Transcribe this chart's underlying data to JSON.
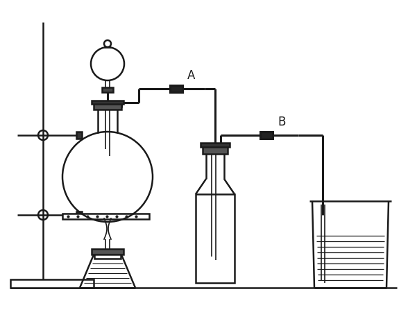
{
  "bg_color": "#ffffff",
  "line_color": "#1a1a1a",
  "label_A": "A",
  "label_B": "B",
  "lw": 1.8,
  "lw_tube": 2.2,
  "lw_thin": 1.2,
  "fig_w": 5.88,
  "fig_h": 4.5
}
